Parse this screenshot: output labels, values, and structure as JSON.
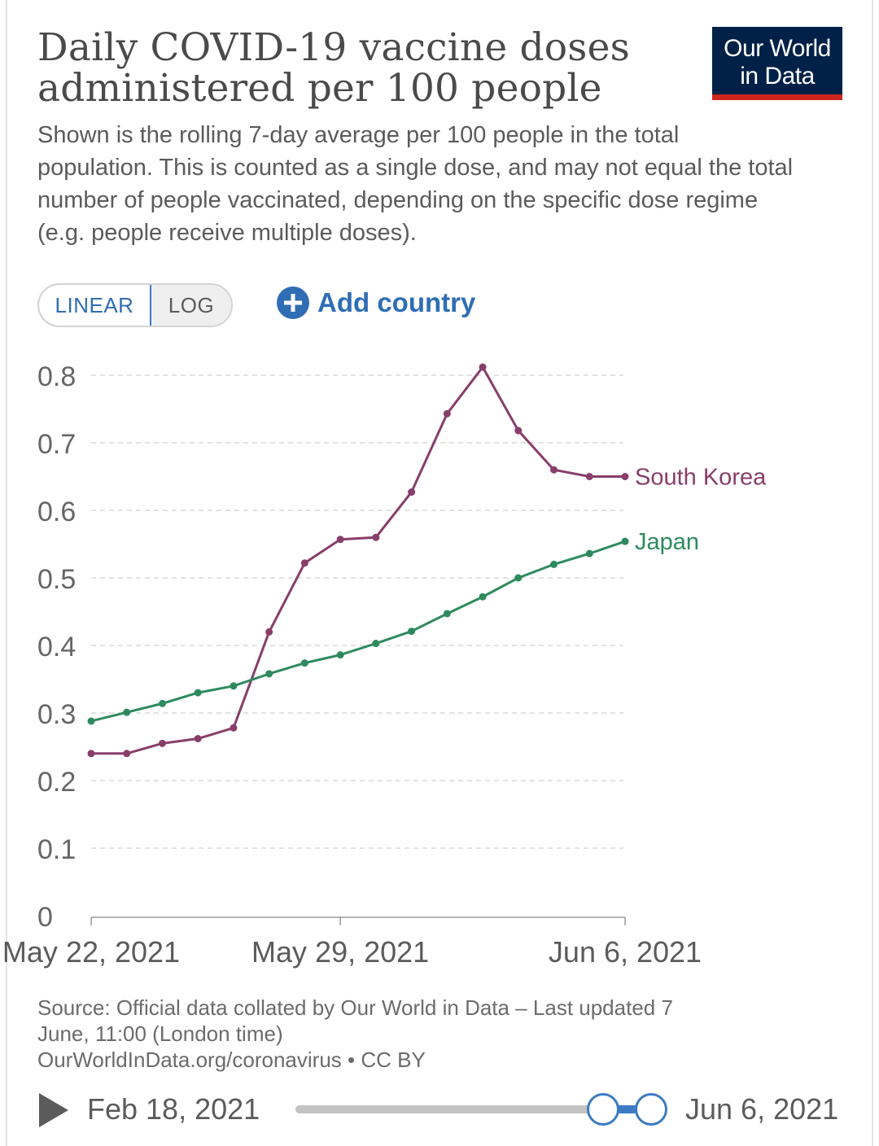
{
  "header": {
    "title_line1": "Daily COVID-19 vaccine doses",
    "title_line2": "administered per 100 people",
    "subtitle": "Shown is the rolling 7-day average per 100 people in the total population. This is counted as a single dose, and may not equal the total number of people vaccinated, depending on the specific dose regime (e.g. people receive multiple doses).",
    "logo_line1": "Our World",
    "logo_line2": "in Data"
  },
  "controls": {
    "linear_label": "LINEAR",
    "log_label": "LOG",
    "add_country_label": "Add country",
    "add_icon": "plus-circle-icon"
  },
  "chart_data": {
    "type": "line",
    "title": "Daily COVID-19 vaccine doses administered per 100 people",
    "ylim": [
      0,
      0.8
    ],
    "yticks": [
      0,
      0.1,
      0.2,
      0.3,
      0.4,
      0.5,
      0.6,
      0.7,
      0.8
    ],
    "ytick_labels": [
      "0",
      "0.1",
      "0.2",
      "0.3",
      "0.4",
      "0.5",
      "0.6",
      "0.7",
      "0.8"
    ],
    "grid": true,
    "x_start": "May 22, 2021",
    "x_end": "Jun 6, 2021",
    "x": [
      "May 22, 2021",
      "May 23, 2021",
      "May 24, 2021",
      "May 25, 2021",
      "May 26, 2021",
      "May 27, 2021",
      "May 28, 2021",
      "May 29, 2021",
      "May 30, 2021",
      "May 31, 2021",
      "Jun 1, 2021",
      "Jun 2, 2021",
      "Jun 3, 2021",
      "Jun 4, 2021",
      "Jun 5, 2021",
      "Jun 6, 2021"
    ],
    "xtick_labels": [
      "May 22, 2021",
      "May 29, 2021",
      "Jun 6, 2021"
    ],
    "xtick_positions": [
      0,
      7,
      15
    ],
    "legend_placement": "line-end labels",
    "series": [
      {
        "name": "South Korea",
        "color": "#883e6a",
        "values": [
          0.24,
          0.24,
          0.255,
          0.262,
          0.278,
          0.42,
          0.522,
          0.557,
          0.56,
          0.627,
          0.743,
          0.812,
          0.718,
          0.66,
          0.65,
          0.65
        ]
      },
      {
        "name": "Japan",
        "color": "#2e8a5e",
        "values": [
          0.288,
          0.301,
          0.314,
          0.33,
          0.34,
          0.358,
          0.374,
          0.386,
          0.403,
          0.421,
          0.447,
          0.472,
          0.5,
          0.52,
          0.536,
          0.554
        ]
      }
    ]
  },
  "footer": {
    "source_line1": "Source: Official data collated by Our World in Data – Last updated 7",
    "source_line2": "June, 11:00 (London time)",
    "source_line3": "OurWorldInData.org/coronavirus • CC BY"
  },
  "timeline": {
    "start_label": "Feb 18, 2021",
    "end_label": "Jun 6, 2021",
    "play_icon": "play-icon"
  },
  "colors": {
    "accent": "#3c7bc4",
    "logo_bg": "#002147",
    "logo_stripe": "#ce261e"
  }
}
